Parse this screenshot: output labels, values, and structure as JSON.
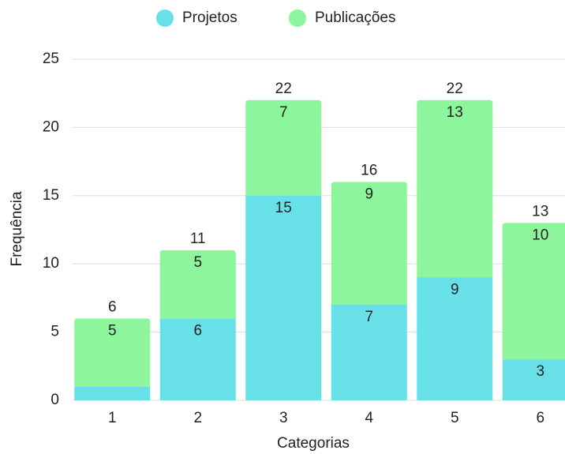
{
  "chart_data": {
    "type": "stacked_bar",
    "categories": [
      "1",
      "2",
      "3",
      "4",
      "5",
      "6"
    ],
    "series": [
      {
        "name": "Projetos",
        "color": "#67e1e7",
        "values": [
          1,
          6,
          15,
          7,
          9,
          3
        ]
      },
      {
        "name": "Publicações",
        "color": "#8df69c",
        "values": [
          5,
          5,
          7,
          9,
          13,
          10
        ]
      }
    ],
    "totals": [
      6,
      11,
      22,
      16,
      22,
      13
    ],
    "ylim": [
      0,
      25
    ],
    "yticks": [
      0,
      5,
      10,
      15,
      20,
      25
    ],
    "grid": true,
    "y_label": "Frequência",
    "x_label": "Categorias",
    "legend": "top"
  }
}
